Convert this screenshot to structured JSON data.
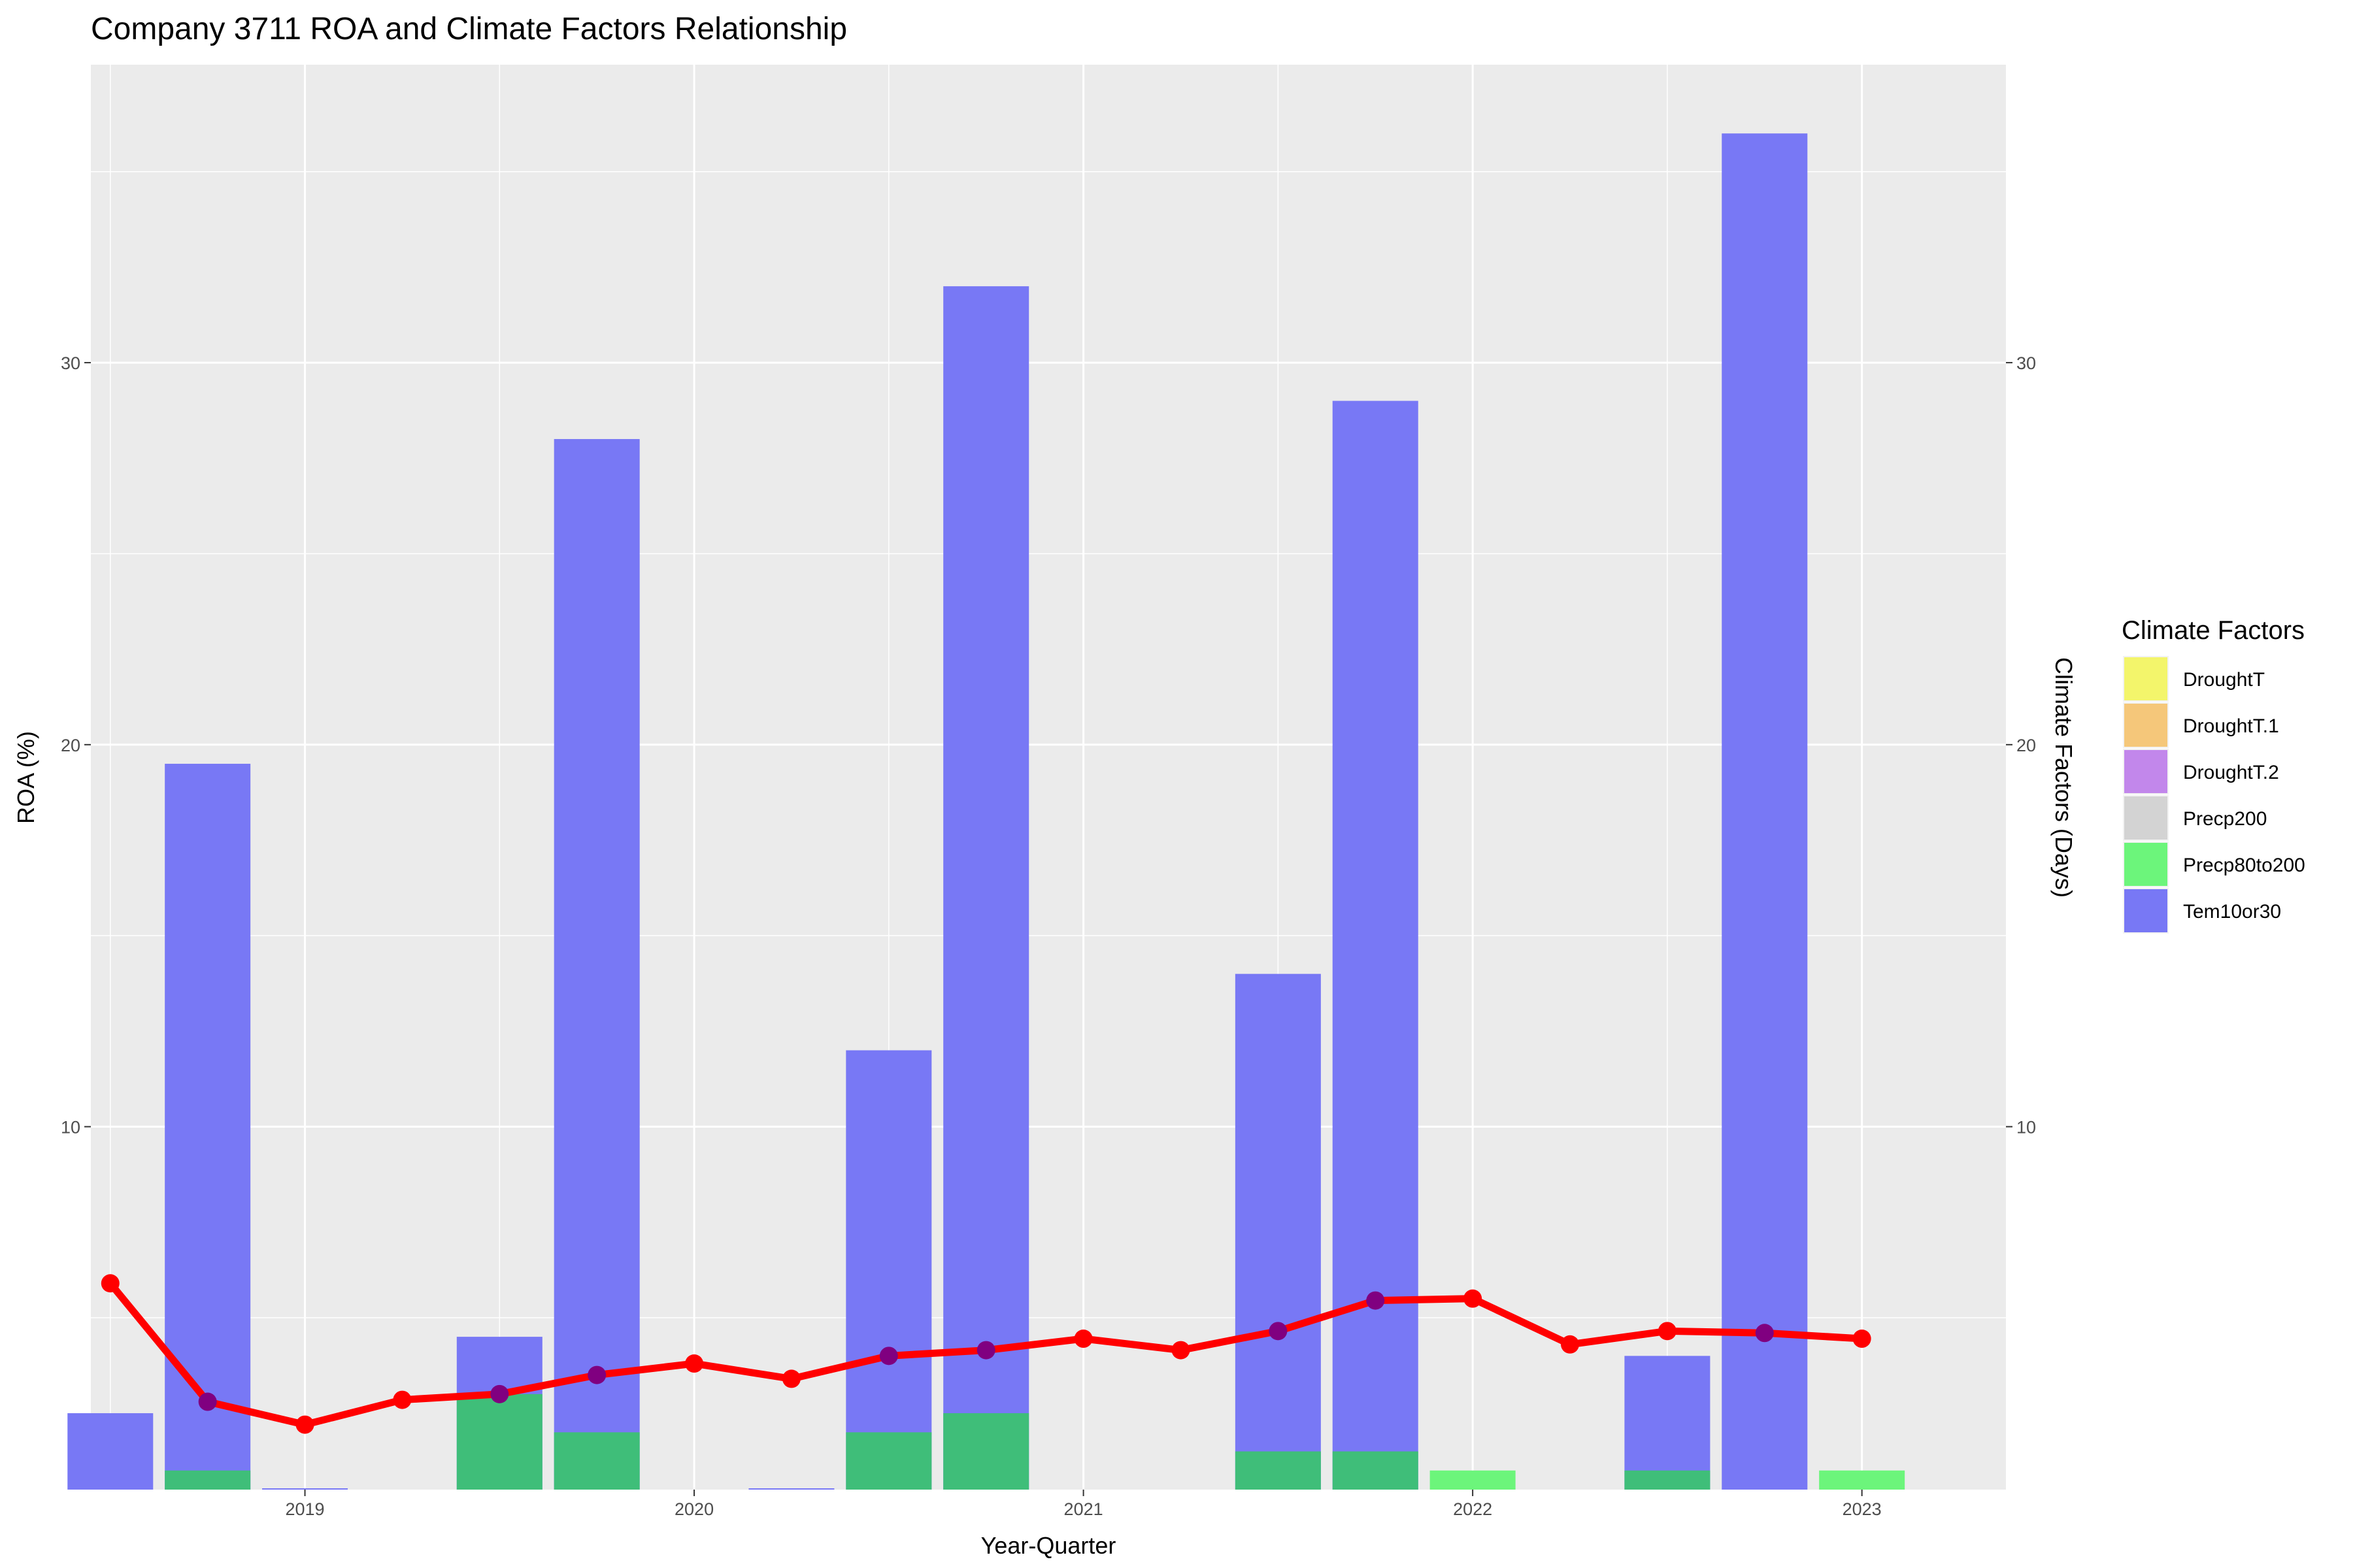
{
  "chart_data": {
    "type": "bar",
    "title": "Company 3711 ROA and Climate Factors Relationship",
    "xlabel": "Year-Quarter",
    "ylabel": "ROA (%)",
    "y2label": "Climate Factors (Days)",
    "xlim": [
      2018.45,
      2023.37
    ],
    "ylim": [
      0.5,
      37.8
    ],
    "x_ticks": [
      2019,
      2020,
      2021,
      2022,
      2023
    ],
    "y_ticks": [
      10,
      20,
      30
    ],
    "grid": true,
    "legend": {
      "title": "Climate Factors",
      "position": "right",
      "entries": [
        "DroughtT",
        "DroughtT.1",
        "DroughtT.2",
        "Precp200",
        "Precp80to200",
        "Tem10or30"
      ]
    },
    "colors": {
      "DroughtT": "#f3f56b",
      "DroughtT.1": "#f5c77a",
      "DroughtT.2": "#c287eb",
      "Precp200": "#d3d3d3",
      "Precp80to200": "#6cf57b",
      "Tem10or30": "#7878f5",
      "overlap": "#3fbe79",
      "roa_line": "#ff0000"
    },
    "quarters": [
      2018.5,
      2018.75,
      2019.0,
      2019.25,
      2019.5,
      2019.75,
      2020.0,
      2020.25,
      2020.5,
      2020.75,
      2021.0,
      2021.25,
      2021.5,
      2021.75,
      2022.0,
      2022.25,
      2022.5,
      2022.75,
      2023.0
    ],
    "series": [
      {
        "name": "Tem10or30",
        "values": [
          2.5,
          19.5,
          0.5,
          0,
          4.5,
          28,
          0,
          0,
          12,
          32,
          0,
          0,
          14,
          29,
          0,
          0,
          4,
          36,
          0
        ]
      },
      {
        "name": "Precp80to200",
        "values": [
          0,
          1,
          0,
          0,
          3,
          2,
          0,
          0.5,
          2,
          2.5,
          0,
          0,
          1.5,
          1.5,
          1,
          0,
          1,
          0,
          1
        ]
      },
      {
        "name": "ROA",
        "values": [
          5.9,
          2.8,
          2.2,
          2.85,
          3.0,
          3.5,
          3.8,
          3.4,
          4.0,
          4.15,
          4.45,
          4.15,
          4.65,
          5.45,
          5.5,
          4.3,
          4.65,
          4.6,
          4.45
        ]
      }
    ]
  }
}
